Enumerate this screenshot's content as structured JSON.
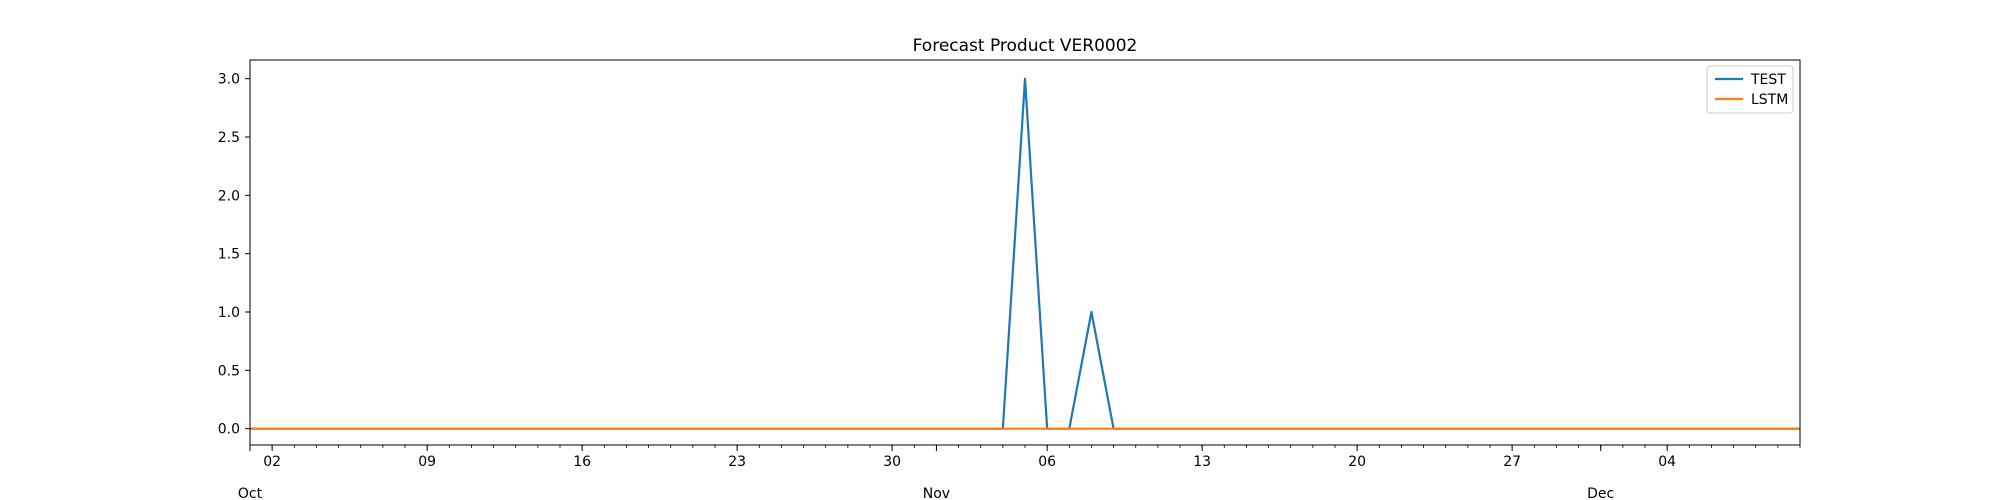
{
  "chart_data": {
    "type": "line",
    "title": "Forecast Product VER0002",
    "xlabel": "",
    "ylabel": "",
    "x_start": "2023-10-01",
    "x_end": "2023-12-10",
    "ylim": [
      -0.14,
      3.16
    ],
    "y_ticks": [
      "0.0",
      "0.5",
      "1.0",
      "1.5",
      "2.0",
      "2.5",
      "3.0"
    ],
    "x_day_ticks": [
      {
        "date": "2023-10-02",
        "label": "02"
      },
      {
        "date": "2023-10-09",
        "label": "09"
      },
      {
        "date": "2023-10-16",
        "label": "16"
      },
      {
        "date": "2023-10-23",
        "label": "23"
      },
      {
        "date": "2023-10-30",
        "label": "30"
      },
      {
        "date": "2023-11-06",
        "label": "06"
      },
      {
        "date": "2023-11-13",
        "label": "13"
      },
      {
        "date": "2023-11-20",
        "label": "20"
      },
      {
        "date": "2023-11-27",
        "label": "27"
      },
      {
        "date": "2023-12-04",
        "label": "04"
      }
    ],
    "x_month_ticks": [
      {
        "date": "2023-10-01",
        "label": "Oct"
      },
      {
        "date": "2023-11-01",
        "label": "Nov"
      },
      {
        "date": "2023-12-01",
        "label": "Dec"
      }
    ],
    "grid": false,
    "legend_position": "top-right",
    "series": [
      {
        "name": "TEST",
        "color": "#1f77b4",
        "points": [
          {
            "x": "2023-10-01",
            "y": 0
          },
          {
            "x": "2023-11-04",
            "y": 0
          },
          {
            "x": "2023-11-05",
            "y": 3
          },
          {
            "x": "2023-11-06",
            "y": 0
          },
          {
            "x": "2023-11-07",
            "y": 0
          },
          {
            "x": "2023-11-08",
            "y": 1
          },
          {
            "x": "2023-11-09",
            "y": 0
          },
          {
            "x": "2023-12-10",
            "y": 0
          }
        ]
      },
      {
        "name": "LSTM",
        "color": "#ff7f0e",
        "points": [
          {
            "x": "2023-10-01",
            "y": 0
          },
          {
            "x": "2023-12-10",
            "y": 0
          }
        ]
      }
    ]
  }
}
